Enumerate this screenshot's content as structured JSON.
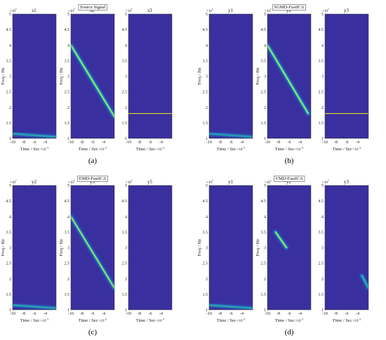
{
  "chart_data": [
    {
      "type": "heatmap",
      "panel_label": "(a)",
      "title": "Source Signal",
      "ylabel": "Freq / Hz",
      "xlabel": "Time / Sec",
      "x_exponent": "×10",
      "x_exponent_power": "−5",
      "y_exponent": "×10",
      "y_exponent_power": "7",
      "ylim": [
        1,
        5
      ],
      "yticks": [
        "1",
        "1.5",
        "2",
        "2.5",
        "3",
        "3.5",
        "4",
        "4.5",
        "5"
      ],
      "xlim": [
        -10,
        -2
      ],
      "xticks": [
        "-10",
        "-8",
        "-6",
        "-4"
      ],
      "subplots": [
        {
          "title": "s1",
          "ridges": [
            {
              "t_start": -10,
              "f_start": 1.15,
              "t_end": -2,
              "f_end": 1.05,
              "strength": 0.6
            }
          ]
        },
        {
          "title": "s2",
          "ridges": [
            {
              "t_start": -10,
              "f_start": 4.0,
              "t_end": -2,
              "f_end": 1.7,
              "strength": 1.0
            }
          ]
        },
        {
          "title": "s3",
          "ridges": [
            {
              "t_start": -10,
              "f_start": 1.8,
              "t_end": -2,
              "f_end": 1.8,
              "strength": 1.0
            }
          ]
        }
      ]
    },
    {
      "type": "heatmap",
      "panel_label": "(b)",
      "title": "SGMD-FastICA",
      "ylabel": "Freq / Hz",
      "xlabel": "Time / Sec",
      "x_exponent": "×10",
      "x_exponent_power": "−5",
      "y_exponent": "×10",
      "y_exponent_power": "7",
      "ylim": [
        1,
        5
      ],
      "yticks": [
        "1",
        "1.5",
        "2",
        "2.5",
        "3",
        "3.5",
        "4",
        "4.5",
        "5"
      ],
      "xlim": [
        -10,
        -2
      ],
      "xticks": [
        "-10",
        "-8",
        "-6",
        "-4"
      ],
      "subplots": [
        {
          "title": "y1",
          "ridges": [
            {
              "t_start": -10,
              "f_start": 1.15,
              "t_end": -2,
              "f_end": 1.05,
              "strength": 0.55
            }
          ]
        },
        {
          "title": "y2",
          "ridges": [
            {
              "t_start": -10,
              "f_start": 4.0,
              "t_end": -2.5,
              "f_end": 1.8,
              "strength": 1.0
            }
          ]
        },
        {
          "title": "y3",
          "ridges": [
            {
              "t_start": -10,
              "f_start": 1.8,
              "t_end": -2,
              "f_end": 1.8,
              "strength": 1.0
            }
          ]
        }
      ]
    },
    {
      "type": "heatmap",
      "panel_label": "(c)",
      "title": "EMD-FastICA",
      "ylabel": "Freq / Hz",
      "xlabel": "Time / Sec",
      "x_exponent": "×10",
      "x_exponent_power": "−5",
      "y_exponent": "×10",
      "y_exponent_power": "7",
      "ylim": [
        1,
        5
      ],
      "yticks": [
        "1",
        "1.5",
        "2",
        "2.5",
        "3",
        "3.5",
        "4",
        "4.5",
        "5"
      ],
      "xlim": [
        -10,
        -2
      ],
      "xticks": [
        "-10",
        "-8",
        "-6",
        "-4"
      ],
      "subplots": [
        {
          "title": "y2",
          "ridges": [
            {
              "t_start": -10,
              "f_start": 1.15,
              "t_end": -2,
              "f_end": 1.05,
              "strength": 0.6
            }
          ]
        },
        {
          "title": "y3",
          "ridges": [
            {
              "t_start": -10,
              "f_start": 4.0,
              "t_end": -2,
              "f_end": 1.7,
              "strength": 0.85
            },
            {
              "t_start": -4.5,
              "f_start": 1.8,
              "t_end": -2,
              "f_end": 1.8,
              "strength": 0.35
            }
          ]
        },
        {
          "title": "y5",
          "ridges": [
            {
              "t_start": -10,
              "f_start": 1.8,
              "t_end": -6.5,
              "f_end": 1.8,
              "strength": 0.2
            },
            {
              "t_start": -4,
              "f_start": 1.05,
              "t_end": -2,
              "f_end": 1.05,
              "strength": 0.35
            }
          ]
        }
      ]
    },
    {
      "type": "heatmap",
      "panel_label": "(d)",
      "title": "VMD-FastICA",
      "ylabel": "Freq / Hz",
      "xlabel": "Time / Sec",
      "x_exponent": "×10",
      "x_exponent_power": "−5",
      "y_exponent": "×10",
      "y_exponent_power": "7",
      "ylim": [
        1,
        5
      ],
      "yticks": [
        "1",
        "1.5",
        "2",
        "2.5",
        "3",
        "3.5",
        "4",
        "4.5",
        "5"
      ],
      "xlim": [
        -10,
        -2
      ],
      "xticks": [
        "-10",
        "-8",
        "-6",
        "-4"
      ],
      "subplots": [
        {
          "title": "y1",
          "ridges": [
            {
              "t_start": -10,
              "f_start": 1.15,
              "t_end": -2,
              "f_end": 1.05,
              "strength": 0.6
            }
          ]
        },
        {
          "title": "y2",
          "ridges": [
            {
              "t_start": -8.5,
              "f_start": 3.5,
              "t_end": -6.5,
              "f_end": 3.0,
              "strength": 0.95
            }
          ]
        },
        {
          "title": "y3",
          "ridges": [
            {
              "t_start": -10,
              "f_start": 1.8,
              "t_end": -3,
              "f_end": 1.8,
              "strength": 0.65
            },
            {
              "t_start": -3.2,
              "f_start": 2.1,
              "t_end": -2,
              "f_end": 1.7,
              "strength": 0.7
            }
          ]
        }
      ]
    }
  ],
  "colors": {
    "background": "#3A2F9E",
    "ridge_low": "#1F7FD8",
    "ridge_mid": "#23D5B2",
    "ridge_core": "#F2F21E"
  }
}
